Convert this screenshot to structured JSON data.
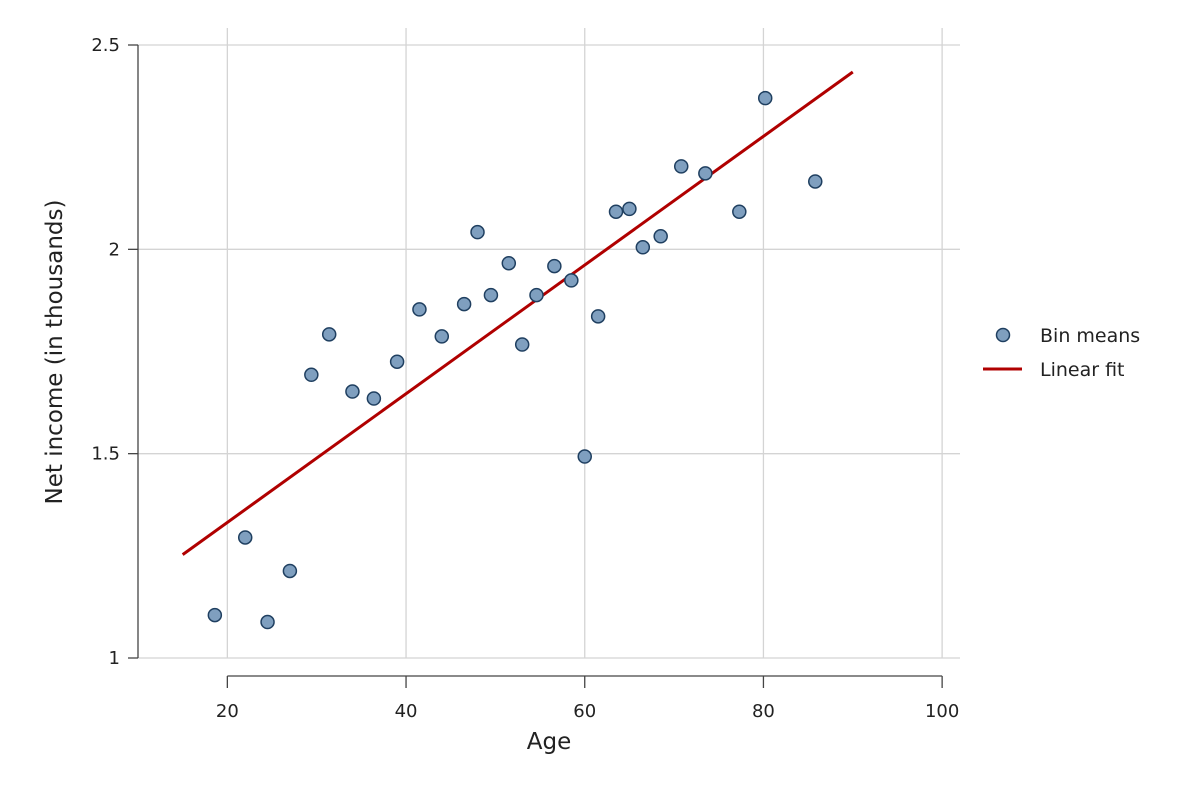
{
  "chart_data": {
    "type": "scatter",
    "xlabel": "Age",
    "ylabel": "Net income (in thousands)",
    "xlim": [
      10,
      102
    ],
    "ylim": [
      1,
      2.5
    ],
    "x_ticks": [
      20,
      40,
      60,
      80,
      100
    ],
    "x_tick_labels": [
      "20",
      "40",
      "60",
      "80",
      "100"
    ],
    "y_ticks": [
      1,
      1.5,
      2,
      2.5
    ],
    "y_tick_labels": [
      "1",
      "1.5",
      "2",
      "2.5"
    ],
    "grid": true,
    "legend": "right",
    "series": [
      {
        "name": "Bin means",
        "kind": "scatter",
        "color": "#7f9fbf",
        "edge_color": "#1f3f60",
        "points": [
          [
            18.6,
            1.105
          ],
          [
            22.0,
            1.295
          ],
          [
            24.5,
            1.088
          ],
          [
            27.0,
            1.213
          ],
          [
            29.4,
            1.693
          ],
          [
            31.4,
            1.792
          ],
          [
            34.0,
            1.652
          ],
          [
            36.4,
            1.635
          ],
          [
            39.0,
            1.725
          ],
          [
            41.5,
            1.853
          ],
          [
            44.0,
            1.787
          ],
          [
            46.5,
            1.866
          ],
          [
            48.0,
            2.042
          ],
          [
            49.5,
            1.888
          ],
          [
            51.5,
            1.966
          ],
          [
            53.0,
            1.767
          ],
          [
            54.6,
            1.888
          ],
          [
            56.6,
            1.959
          ],
          [
            58.5,
            1.924
          ],
          [
            60.0,
            1.493
          ],
          [
            61.5,
            1.836
          ],
          [
            63.5,
            2.092
          ],
          [
            65.0,
            2.099
          ],
          [
            66.5,
            2.005
          ],
          [
            68.5,
            2.032
          ],
          [
            70.8,
            2.203
          ],
          [
            73.5,
            2.186
          ],
          [
            77.3,
            2.092
          ],
          [
            80.2,
            2.37
          ],
          [
            85.8,
            2.166
          ]
        ]
      },
      {
        "name": "Linear fit",
        "kind": "line",
        "color": "#b00000",
        "points": [
          [
            15,
            1.253
          ],
          [
            90,
            2.434
          ]
        ]
      }
    ]
  }
}
